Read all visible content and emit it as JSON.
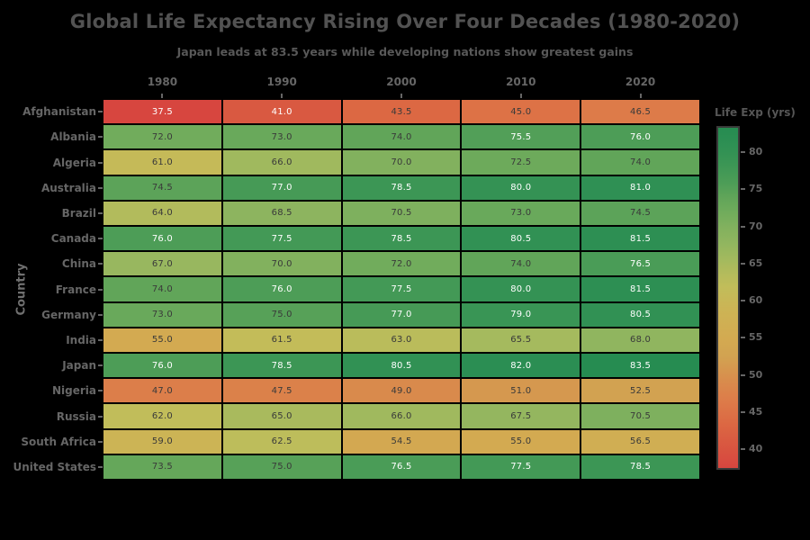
{
  "title": "Global Life Expectancy Rising Over Four Decades (1980-2020)",
  "subtitle": "Japan leads at 83.5 years while developing nations show greatest gains",
  "colors": {
    "background": "#000000",
    "title_text": "#525252",
    "subtitle_text": "#585858",
    "tick_text": "#666666",
    "ylabel_text": "#6f6f6f",
    "cell_text_dark": "#3a3a3a",
    "cell_text_light": "#ffffff",
    "colorbar_border": "#3a3a3a"
  },
  "chart_data": {
    "type": "heatmap",
    "title": "Global Life Expectancy Rising Over Four Decades (1980-2020)",
    "subtitle": "Japan leads at 83.5 years while developing nations show greatest gains",
    "xlabel": "",
    "ylabel": "Country",
    "x_tick_labels": [
      "1980",
      "1990",
      "2000",
      "2010",
      "2020"
    ],
    "y_tick_labels": [
      "Afghanistan",
      "Albania",
      "Algeria",
      "Australia",
      "Brazil",
      "Canada",
      "China",
      "France",
      "Germany",
      "India",
      "Japan",
      "Nigeria",
      "Russia",
      "South Africa",
      "United States"
    ],
    "values": [
      [
        37.5,
        41.0,
        43.5,
        45.0,
        46.5
      ],
      [
        72.0,
        73.0,
        74.0,
        75.5,
        76.0
      ],
      [
        61.0,
        66.0,
        70.0,
        72.5,
        74.0
      ],
      [
        74.5,
        77.0,
        78.5,
        80.0,
        81.0
      ],
      [
        64.0,
        68.5,
        70.5,
        73.0,
        74.5
      ],
      [
        76.0,
        77.5,
        78.5,
        80.5,
        81.5
      ],
      [
        67.0,
        70.0,
        72.0,
        74.0,
        76.5
      ],
      [
        74.0,
        76.0,
        77.5,
        80.0,
        81.5
      ],
      [
        73.0,
        75.0,
        77.0,
        79.0,
        80.5
      ],
      [
        55.0,
        61.5,
        63.0,
        65.5,
        68.0
      ],
      [
        76.0,
        78.5,
        80.5,
        82.0,
        83.5
      ],
      [
        47.0,
        47.5,
        49.0,
        51.0,
        52.5
      ],
      [
        62.0,
        65.0,
        66.0,
        67.5,
        70.5
      ],
      [
        59.0,
        62.5,
        54.5,
        55.0,
        56.5
      ],
      [
        73.5,
        75.0,
        76.5,
        77.5,
        78.5
      ]
    ],
    "annotations_format": "one_decimal",
    "colorbar": {
      "label": "Life Exp (yrs)",
      "tick_labels": [
        80,
        75,
        70,
        65,
        60,
        55,
        50,
        45,
        40
      ],
      "vmin": 37.5,
      "vmax": 83.5
    },
    "colormap_stops": [
      [
        37.5,
        "#d7463f"
      ],
      [
        41.0,
        "#d95941"
      ],
      [
        43.5,
        "#dc6843"
      ],
      [
        46.5,
        "#dd7b49"
      ],
      [
        49.0,
        "#d98a4c"
      ],
      [
        52.5,
        "#d2a251"
      ],
      [
        55.0,
        "#d3aa51"
      ],
      [
        59.0,
        "#ccb455"
      ],
      [
        62.0,
        "#c1bd5a"
      ],
      [
        64.0,
        "#b2bb5c"
      ],
      [
        66.0,
        "#a0b95e"
      ],
      [
        68.0,
        "#90b55f"
      ],
      [
        70.0,
        "#82b15e"
      ],
      [
        72.0,
        "#71ac5c"
      ],
      [
        74.0,
        "#61a559"
      ],
      [
        76.0,
        "#4d9d57"
      ],
      [
        78.5,
        "#3c9655"
      ],
      [
        80.5,
        "#319154"
      ],
      [
        82.0,
        "#2b8e53"
      ],
      [
        83.5,
        "#268c51"
      ]
    ],
    "text_color_rule": {
      "white_if_leq": 41.0,
      "white_if_geq": 75.5
    },
    "grid": "off",
    "legend_position": "right-colorbar"
  }
}
